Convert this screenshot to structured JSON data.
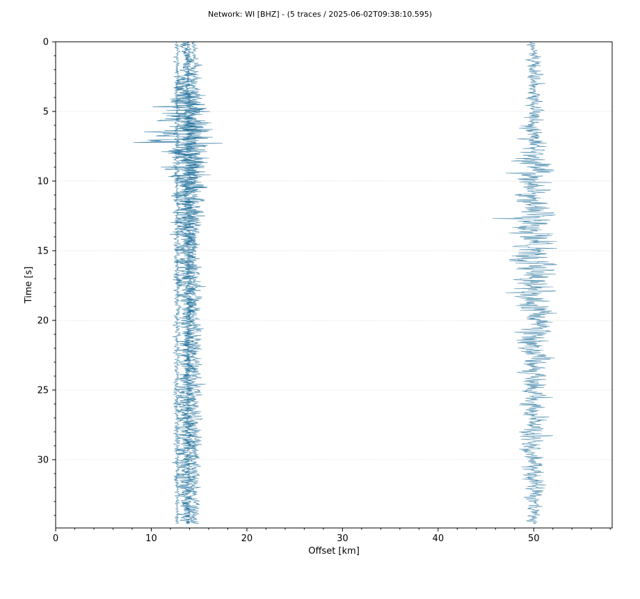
{
  "chart_data": {
    "type": "line",
    "title": "Network: WI [BHZ] - (5 traces / 2025-06-02T09:38:10.595)",
    "xlabel": "Offset [km]",
    "ylabel": "Time [s]",
    "xlim": [
      0,
      58.2
    ],
    "ylim": [
      34.9,
      0
    ],
    "y_inverted": true,
    "x_ticks": [
      0,
      10,
      20,
      30,
      40,
      50
    ],
    "y_ticks": [
      0,
      5,
      10,
      15,
      20,
      25,
      30
    ],
    "grid": "horizontal-dotted",
    "line_color": "#1f6f9a",
    "series": [
      {
        "offset_km": 12.7,
        "amplitude_km": 0.5,
        "envelope": [
          [
            0,
            0.6
          ],
          [
            3,
            0.7
          ],
          [
            5,
            0.8
          ],
          [
            10,
            0.8
          ],
          [
            15,
            0.8
          ],
          [
            20,
            0.8
          ],
          [
            25,
            0.8
          ],
          [
            30,
            0.8
          ],
          [
            34.5,
            0.6
          ]
        ]
      },
      {
        "offset_km": 13.6,
        "amplitude_km": 3.5,
        "envelope": [
          [
            0,
            0.2
          ],
          [
            2,
            0.25
          ],
          [
            3.5,
            0.55
          ],
          [
            5,
            1.0
          ],
          [
            7,
            1.3
          ],
          [
            8,
            1.0
          ],
          [
            10,
            0.75
          ],
          [
            12,
            0.6
          ],
          [
            15,
            0.45
          ],
          [
            20,
            0.35
          ],
          [
            25,
            0.35
          ],
          [
            30,
            0.35
          ],
          [
            34.5,
            0.3
          ]
        ]
      },
      {
        "offset_km": 14.5,
        "amplitude_km": 1.6,
        "envelope": [
          [
            0,
            0.3
          ],
          [
            2,
            0.5
          ],
          [
            4,
            0.9
          ],
          [
            6,
            1.0
          ],
          [
            8,
            0.9
          ],
          [
            10,
            0.75
          ],
          [
            12,
            0.65
          ],
          [
            15,
            0.6
          ],
          [
            20,
            0.6
          ],
          [
            25,
            0.6
          ],
          [
            30,
            0.55
          ],
          [
            34.5,
            0.45
          ]
        ]
      },
      {
        "offset_km": 13.9,
        "amplitude_km": 1.0,
        "envelope": [
          [
            0,
            0.3
          ],
          [
            3,
            0.5
          ],
          [
            5,
            0.8
          ],
          [
            7,
            1.0
          ],
          [
            10,
            0.8
          ],
          [
            15,
            0.6
          ],
          [
            20,
            0.55
          ],
          [
            25,
            0.5
          ],
          [
            30,
            0.5
          ],
          [
            34.5,
            0.4
          ]
        ]
      },
      {
        "offset_km": 50.0,
        "amplitude_km": 6.0,
        "envelope": [
          [
            0,
            0.12
          ],
          [
            2,
            0.2
          ],
          [
            5,
            0.22
          ],
          [
            8,
            0.3
          ],
          [
            9,
            0.5
          ],
          [
            10,
            0.42
          ],
          [
            12,
            0.4
          ],
          [
            15,
            0.5
          ],
          [
            16,
            0.6
          ],
          [
            18,
            0.5
          ],
          [
            20,
            0.4
          ],
          [
            22,
            0.36
          ],
          [
            25,
            0.3
          ],
          [
            28,
            0.3
          ],
          [
            30,
            0.25
          ],
          [
            32,
            0.22
          ],
          [
            34.5,
            0.14
          ]
        ]
      }
    ]
  }
}
